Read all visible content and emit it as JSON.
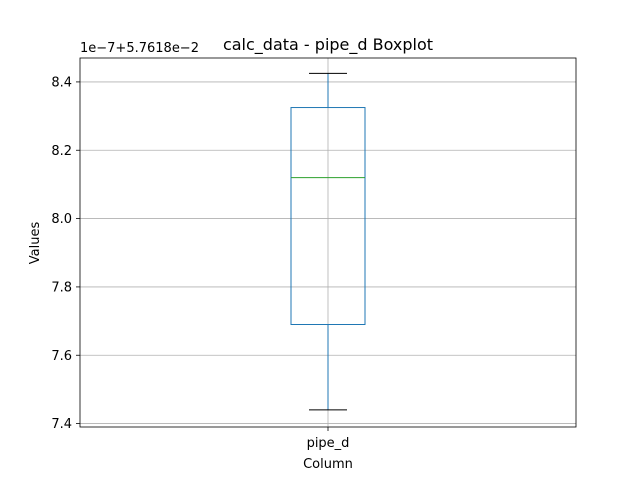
{
  "chart_data": {
    "type": "boxplot",
    "title": "calc_data - pipe_d Boxplot",
    "xlabel": "Column",
    "ylabel": "Values",
    "y_offset_label": "1e−7+5.7618e−2",
    "categories": [
      "pipe_d"
    ],
    "boxes": [
      {
        "name": "pipe_d",
        "whisker_low": 7.44,
        "q1": 7.69,
        "median": 8.12,
        "q3": 8.325,
        "whisker_high": 8.425
      }
    ],
    "y_ticks": [
      7.4,
      7.6,
      7.8,
      8.0,
      8.2,
      8.4
    ],
    "y_tick_labels": [
      "7.4",
      "7.6",
      "7.8",
      "8.0",
      "8.2",
      "8.4"
    ],
    "ylim": [
      7.39,
      8.47
    ],
    "grid": true,
    "colors": {
      "box": "#1f77b4",
      "median": "#2ca02c",
      "whisker": "#1f77b4",
      "cap": "#000000",
      "grid": "#b0b0b0",
      "axes": "#000000"
    }
  }
}
